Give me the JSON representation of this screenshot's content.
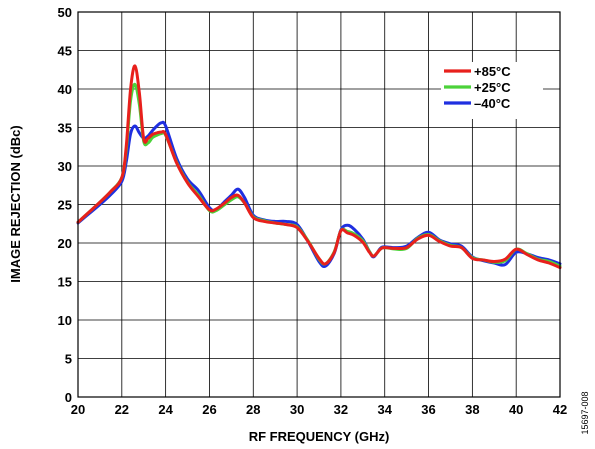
{
  "chart_data": {
    "type": "line",
    "title": "",
    "xlabel": "RF FREQUENCY (GHz)",
    "ylabel": "IMAGE REJECTION (dBc)",
    "xlim": [
      20,
      42
    ],
    "ylim": [
      0,
      50
    ],
    "xticks": [
      20,
      22,
      24,
      26,
      28,
      30,
      32,
      34,
      36,
      38,
      40,
      42
    ],
    "yticks": [
      0,
      5,
      10,
      15,
      20,
      25,
      30,
      35,
      40,
      45,
      50
    ],
    "grid": true,
    "legend_position": "top-right",
    "figure_id": "15697-008",
    "series": [
      {
        "name": "+85°C",
        "color": "#e8201c",
        "x": [
          20,
          20.5,
          21,
          21.5,
          22,
          22.2,
          22.4,
          22.6,
          22.8,
          23,
          23.2,
          23.4,
          23.6,
          23.8,
          24,
          24.5,
          25,
          25.5,
          26,
          26.3,
          26.7,
          27,
          27.3,
          27.6,
          28,
          28.5,
          29,
          29.5,
          30,
          30.5,
          31,
          31.3,
          31.7,
          32,
          32.3,
          32.6,
          33,
          33.3,
          33.5,
          33.8,
          34,
          34.5,
          35,
          35.5,
          36,
          36.5,
          37,
          37.5,
          38,
          38.5,
          39,
          39.5,
          40,
          40.5,
          41,
          41.5,
          42
        ],
        "y": [
          22.7,
          24,
          25.3,
          26.7,
          28.5,
          32.5,
          40,
          43,
          39.5,
          33.5,
          33.6,
          34.1,
          34.3,
          34.4,
          34.1,
          30.4,
          27.8,
          26,
          24.3,
          24.4,
          25.2,
          25.9,
          26.2,
          25.2,
          23.3,
          22.8,
          22.6,
          22.4,
          22,
          20.2,
          18,
          17.3,
          18.8,
          21.6,
          21.3,
          21,
          20.1,
          18.8,
          18.3,
          19.2,
          19.4,
          19.3,
          19.4,
          20.5,
          21,
          20.2,
          19.6,
          19.4,
          18,
          17.8,
          17.6,
          17.9,
          19.2,
          18.5,
          17.8,
          17.4,
          16.8
        ]
      },
      {
        "name": "+25°C",
        "color": "#4cd23a",
        "x": [
          20,
          20.5,
          21,
          21.5,
          22,
          22.2,
          22.4,
          22.6,
          22.8,
          23,
          23.2,
          23.4,
          23.6,
          23.8,
          24,
          24.5,
          25,
          25.5,
          26,
          26.3,
          26.7,
          27,
          27.3,
          27.6,
          28,
          28.5,
          29,
          29.5,
          30,
          30.5,
          31,
          31.3,
          31.7,
          32,
          32.3,
          32.6,
          33,
          33.3,
          33.5,
          33.8,
          34,
          34.5,
          35,
          35.5,
          36,
          36.5,
          37,
          37.5,
          38,
          38.5,
          39,
          39.5,
          40,
          40.5,
          41,
          41.5,
          42
        ],
        "y": [
          22.7,
          24,
          25.3,
          26.7,
          28.5,
          32,
          38.5,
          40.6,
          38,
          33.2,
          33,
          33.7,
          34,
          34.2,
          34,
          30.5,
          27.9,
          26.2,
          24.2,
          24.2,
          25,
          25.6,
          26,
          25.2,
          23.4,
          22.9,
          22.6,
          22.4,
          22.1,
          20.3,
          17.9,
          17.3,
          18.9,
          21.6,
          21.5,
          21.2,
          20.3,
          18.9,
          18.3,
          19.2,
          19.4,
          19.2,
          19.3,
          20.6,
          21.1,
          20.3,
          19.7,
          19.4,
          18.1,
          17.8,
          17.5,
          17.7,
          19.2,
          18.6,
          17.9,
          17.6,
          17
        ]
      },
      {
        "name": "–40°C",
        "color": "#1f2fe0",
        "x": [
          20,
          20.5,
          21,
          21.5,
          22,
          22.2,
          22.4,
          22.6,
          22.8,
          23,
          23.2,
          23.4,
          23.6,
          23.8,
          24,
          24.5,
          25,
          25.5,
          26,
          26.3,
          26.7,
          27,
          27.3,
          27.6,
          28,
          28.5,
          29,
          29.5,
          30,
          30.5,
          31,
          31.3,
          31.7,
          32,
          32.3,
          32.6,
          33,
          33.3,
          33.5,
          33.8,
          34,
          34.5,
          35,
          35.5,
          36,
          36.5,
          37,
          37.5,
          38,
          38.5,
          39,
          39.5,
          40,
          40.5,
          41,
          41.5,
          42
        ],
        "y": [
          22.6,
          23.8,
          25,
          26.3,
          28,
          30.5,
          34.2,
          35.2,
          34.3,
          33.6,
          33.9,
          34.6,
          35.2,
          35.6,
          35.2,
          31,
          28.3,
          26.8,
          24.6,
          24.3,
          25.4,
          26.2,
          27,
          25.9,
          23.6,
          23,
          22.8,
          22.8,
          22.4,
          20.2,
          17.6,
          17,
          18.7,
          21.7,
          22.3,
          21.8,
          20.5,
          18.9,
          18.2,
          19.3,
          19.5,
          19.4,
          19.6,
          20.7,
          21.4,
          20.4,
          19.9,
          19.6,
          18.2,
          17.7,
          17.4,
          17.2,
          18.8,
          18.6,
          18.1,
          17.8,
          17.3
        ]
      }
    ]
  }
}
